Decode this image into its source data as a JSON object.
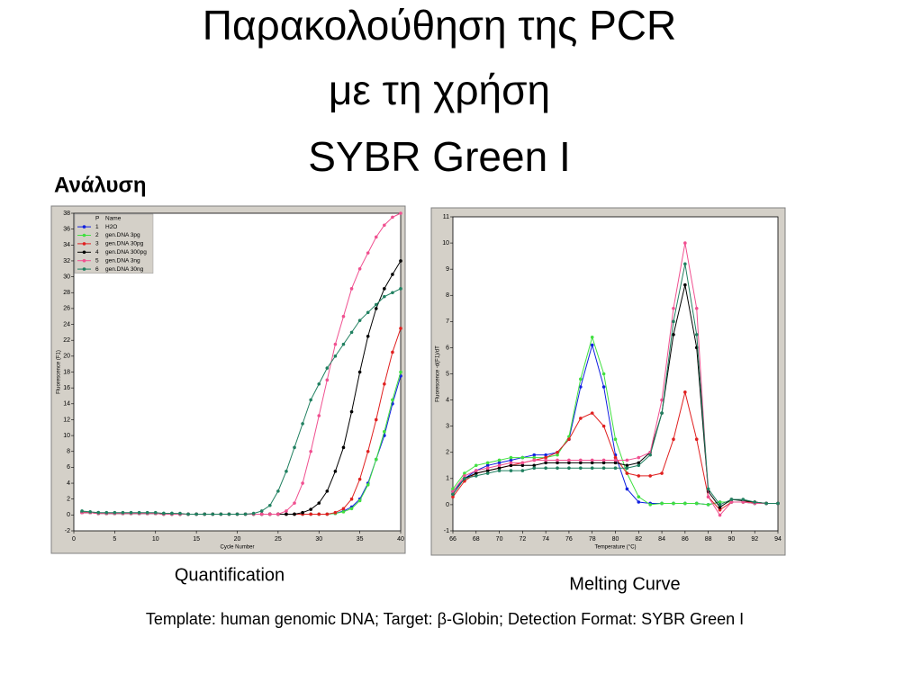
{
  "slide": {
    "title_lines": [
      "Παρακολούθηση της PCR",
      "με τη χρήση",
      "SYBR Green I"
    ],
    "side_label": "Ανάλυση",
    "footer": "Template: human genomic DNA;  Target:  β-Globin;   Detection Format:  SYBR Green I"
  },
  "chart_data": [
    {
      "type": "line",
      "title": "Quantification",
      "xlabel": "Cycle Number",
      "ylabel": "Fluorescence (F1)",
      "xlim": [
        0,
        40
      ],
      "xticks": [
        0,
        5,
        10,
        15,
        20,
        25,
        30,
        35,
        40
      ],
      "ylim": [
        -2,
        38
      ],
      "yticks": [
        -2,
        0,
        2,
        4,
        6,
        8,
        10,
        12,
        14,
        16,
        18,
        20,
        22,
        24,
        26,
        28,
        30,
        32,
        34,
        36,
        38
      ],
      "legend_header": [
        "P",
        "Name"
      ],
      "x": [
        1,
        2,
        3,
        4,
        5,
        6,
        7,
        8,
        9,
        10,
        11,
        12,
        13,
        14,
        15,
        16,
        17,
        18,
        19,
        20,
        21,
        22,
        23,
        24,
        25,
        26,
        27,
        28,
        29,
        30,
        31,
        32,
        33,
        34,
        35,
        36,
        37,
        38,
        39,
        40
      ],
      "series": [
        {
          "number": "1",
          "name": "H2O",
          "color": "#1020e0",
          "values": [
            0.4,
            0.3,
            0.3,
            0.2,
            0.2,
            0.2,
            0.2,
            0.2,
            0.2,
            0.2,
            0.2,
            0.2,
            0.1,
            0.1,
            0.1,
            0.1,
            0.1,
            0.1,
            0.1,
            0.1,
            0.1,
            0.1,
            0.1,
            0.1,
            0.1,
            0.1,
            0.1,
            0.1,
            0.1,
            0.1,
            0.1,
            0.2,
            0.5,
            1,
            2,
            4,
            7,
            10,
            14,
            17.5
          ]
        },
        {
          "number": "2",
          "name": "gen.DNA 3pg",
          "color": "#40e040",
          "values": [
            0.4,
            0.3,
            0.3,
            0.2,
            0.2,
            0.2,
            0.2,
            0.2,
            0.2,
            0.2,
            0.2,
            0.2,
            0.1,
            0.1,
            0.1,
            0.1,
            0.1,
            0.1,
            0.1,
            0.1,
            0.1,
            0.1,
            0.1,
            0.1,
            0.1,
            0.1,
            0.1,
            0.1,
            0.1,
            0.1,
            0.1,
            0.2,
            0.4,
            0.8,
            1.8,
            3.8,
            7,
            10.5,
            14.5,
            18
          ]
        },
        {
          "number": "3",
          "name": "gen.DNA 30pg",
          "color": "#e02020",
          "values": [
            0.3,
            0.3,
            0.2,
            0.2,
            0.2,
            0.2,
            0.2,
            0.2,
            0.2,
            0.2,
            0.1,
            0.1,
            0.1,
            0.1,
            0.1,
            0.1,
            0.1,
            0.1,
            0.1,
            0.1,
            0.1,
            0.1,
            0.1,
            0.1,
            0.1,
            0.1,
            0.1,
            0.1,
            0.1,
            0.1,
            0.1,
            0.3,
            0.8,
            2,
            4.5,
            8,
            12,
            16.5,
            20.5,
            23.5
          ]
        },
        {
          "number": "4",
          "name": "gen.DNA 300pg",
          "color": "#000000",
          "values": [
            0.3,
            0.3,
            0.2,
            0.2,
            0.2,
            0.2,
            0.2,
            0.2,
            0.2,
            0.2,
            0.1,
            0.1,
            0.1,
            0.1,
            0.1,
            0.1,
            0.1,
            0.1,
            0.1,
            0.1,
            0.1,
            0.1,
            0.1,
            0.1,
            0.1,
            0.1,
            0.1,
            0.3,
            0.7,
            1.5,
            3,
            5.5,
            8.5,
            13,
            18,
            22.5,
            26,
            28.5,
            30.3,
            32
          ]
        },
        {
          "number": "5",
          "name": "gen.DNA 3ng",
          "color": "#f05090",
          "values": [
            0.3,
            0.3,
            0.2,
            0.2,
            0.2,
            0.2,
            0.2,
            0.2,
            0.2,
            0.2,
            0.1,
            0.1,
            0.1,
            0.1,
            0.1,
            0.1,
            0.1,
            0.1,
            0.1,
            0.1,
            0.1,
            0.1,
            0.1,
            0.1,
            0.1,
            0.5,
            1.5,
            4,
            8,
            12.5,
            17,
            21.5,
            25,
            28.5,
            31,
            33,
            35,
            36.5,
            37.5,
            38
          ]
        },
        {
          "number": "6",
          "name": "gen.DNA 30ng",
          "color": "#208060",
          "values": [
            0.5,
            0.4,
            0.3,
            0.3,
            0.3,
            0.3,
            0.3,
            0.3,
            0.3,
            0.3,
            0.2,
            0.2,
            0.2,
            0.1,
            0.1,
            0.1,
            0.1,
            0.1,
            0.1,
            0.1,
            0.1,
            0.2,
            0.5,
            1.2,
            3,
            5.5,
            8.5,
            11.5,
            14.5,
            16.5,
            18.5,
            20,
            21.5,
            23,
            24.5,
            25.5,
            26.5,
            27.5,
            28,
            28.5
          ]
        }
      ]
    },
    {
      "type": "line",
      "title": "Melting Curve",
      "xlabel": "Temperature (°C)",
      "ylabel": "Fluorescence -d(F1)/dT",
      "xlim": [
        66,
        94
      ],
      "xticks": [
        66,
        68,
        70,
        72,
        74,
        76,
        78,
        80,
        82,
        84,
        86,
        88,
        90,
        92,
        94
      ],
      "ylim": [
        -1,
        11
      ],
      "yticks": [
        -1,
        0,
        1,
        2,
        3,
        4,
        5,
        6,
        7,
        8,
        9,
        10,
        11
      ],
      "x": [
        66,
        67,
        68,
        69,
        70,
        71,
        72,
        73,
        74,
        75,
        76,
        77,
        78,
        79,
        80,
        81,
        82,
        83,
        84,
        85,
        86,
        87,
        88,
        89,
        90,
        91,
        92,
        93,
        94
      ],
      "series": [
        {
          "color": "#1020e0",
          "values": [
            0.5,
            1,
            1.3,
            1.5,
            1.6,
            1.7,
            1.8,
            1.9,
            1.9,
            2,
            2.5,
            4.5,
            6.1,
            4.5,
            1.9,
            0.6,
            0.1,
            0.05,
            0.05,
            0.05,
            0.05,
            0.05,
            0,
            0.1,
            0.1,
            0.1,
            0.05,
            0.05,
            0.05
          ]
        },
        {
          "color": "#40e040",
          "values": [
            0.6,
            1.2,
            1.5,
            1.6,
            1.7,
            1.8,
            1.8,
            1.8,
            1.8,
            1.9,
            2.6,
            4.8,
            6.4,
            5,
            2.5,
            1.2,
            0.3,
            0,
            0.05,
            0.05,
            0.05,
            0.05,
            0,
            0.1,
            0.1,
            0.1,
            0.05,
            0.05,
            0.05
          ]
        },
        {
          "color": "#e02020",
          "values": [
            0.3,
            0.9,
            1.2,
            1.3,
            1.4,
            1.5,
            1.6,
            1.7,
            1.8,
            2,
            2.5,
            3.3,
            3.5,
            3,
            1.8,
            1.2,
            1.1,
            1.1,
            1.2,
            2.5,
            4.3,
            2.5,
            0.3,
            -0.2,
            0.1,
            0.1,
            0.1,
            0.05,
            0.05
          ]
        },
        {
          "color": "#000000",
          "values": [
            0.4,
            1,
            1.2,
            1.3,
            1.4,
            1.5,
            1.5,
            1.5,
            1.6,
            1.6,
            1.6,
            1.6,
            1.6,
            1.6,
            1.6,
            1.5,
            1.6,
            2,
            3.5,
            6.5,
            8.4,
            6,
            0.5,
            -0.1,
            0.2,
            0.15,
            0.1,
            0.05,
            0.05
          ]
        },
        {
          "color": "#f05090",
          "values": [
            0.5,
            1.1,
            1.3,
            1.4,
            1.5,
            1.6,
            1.6,
            1.7,
            1.7,
            1.7,
            1.7,
            1.7,
            1.7,
            1.7,
            1.7,
            1.7,
            1.8,
            2,
            4,
            7.5,
            10,
            7.5,
            0.3,
            -0.4,
            0.1,
            0.1,
            0.05,
            0.05,
            0.05
          ]
        },
        {
          "color": "#208060",
          "values": [
            0.4,
            1,
            1.1,
            1.2,
            1.3,
            1.3,
            1.3,
            1.4,
            1.4,
            1.4,
            1.4,
            1.4,
            1.4,
            1.4,
            1.4,
            1.4,
            1.5,
            1.9,
            3.5,
            7,
            9.2,
            6.5,
            0.6,
            0,
            0.2,
            0.2,
            0.1,
            0.05,
            0.05
          ]
        }
      ]
    }
  ]
}
